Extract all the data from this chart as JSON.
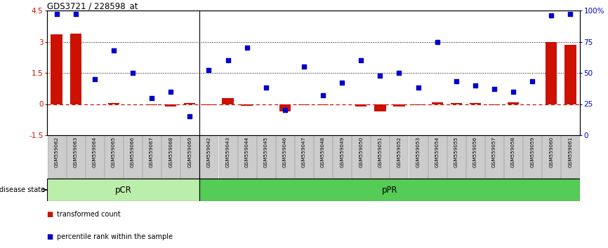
{
  "title": "GDS3721 / 228598_at",
  "samples": [
    "GSM559062",
    "GSM559063",
    "GSM559064",
    "GSM559065",
    "GSM559066",
    "GSM559067",
    "GSM559068",
    "GSM559069",
    "GSM559042",
    "GSM559043",
    "GSM559044",
    "GSM559045",
    "GSM559046",
    "GSM559047",
    "GSM559048",
    "GSM559049",
    "GSM559050",
    "GSM559051",
    "GSM559052",
    "GSM559053",
    "GSM559054",
    "GSM559055",
    "GSM559056",
    "GSM559057",
    "GSM559058",
    "GSM559059",
    "GSM559060",
    "GSM559061"
  ],
  "transformed_count": [
    3.35,
    3.4,
    0.0,
    0.05,
    0.0,
    -0.05,
    -0.12,
    0.04,
    -0.04,
    0.3,
    -0.08,
    0.0,
    -0.35,
    -0.05,
    -0.05,
    0.0,
    -0.12,
    -0.35,
    -0.12,
    -0.04,
    0.08,
    0.05,
    0.05,
    -0.04,
    0.08,
    -0.03,
    3.0,
    2.85
  ],
  "percentile_rank_pct": [
    97,
    97,
    45,
    68,
    50,
    30,
    35,
    15,
    52,
    60,
    70,
    38,
    20,
    55,
    32,
    42,
    60,
    48,
    50,
    38,
    75,
    43,
    40,
    37,
    35,
    43,
    96,
    97
  ],
  "pCR_count": 8,
  "pPR_count": 20,
  "ylim_left": [
    -1.5,
    4.5
  ],
  "ylim_right": [
    0,
    100
  ],
  "yticks_left": [
    -1.5,
    0.0,
    1.5,
    3.0,
    4.5
  ],
  "ytick_labels_left": [
    "-1.5",
    "0",
    "1.5",
    "3",
    "4.5"
  ],
  "yticks_right_pct": [
    0,
    25,
    50,
    75,
    100
  ],
  "ytick_labels_right": [
    "0",
    "25",
    "50",
    "75",
    "100%"
  ],
  "bar_color": "#cc1100",
  "dot_color": "#0000cc",
  "hline_color": "#cc1100",
  "pcr_color": "#bbeeaa",
  "ppr_color": "#55cc55",
  "pcr_label": "pCR",
  "ppr_label": "pPR",
  "legend_bar_label": "transformed count",
  "legend_dot_label": "percentile rank within the sample",
  "disease_state_label": "disease state"
}
